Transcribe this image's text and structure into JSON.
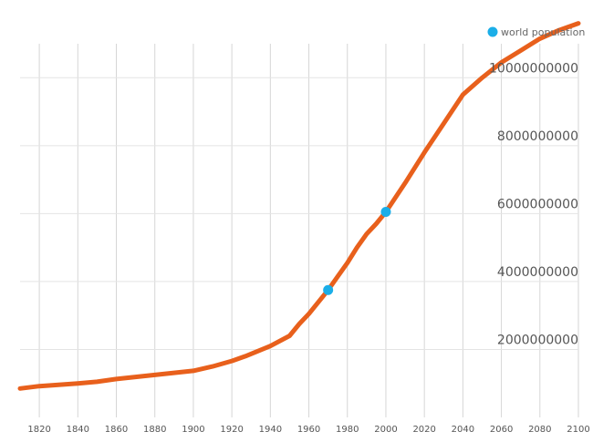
{
  "chart_data": {
    "type": "line",
    "title": "",
    "xlabel": "",
    "ylabel": "",
    "xlim": [
      1810,
      2100
    ],
    "ylim": [
      0,
      11000000000
    ],
    "grid": true,
    "legend_position": "top-right",
    "x_ticks": [
      1820,
      1840,
      1860,
      1880,
      1900,
      1920,
      1940,
      1960,
      1980,
      2000,
      2020,
      2040,
      2060,
      2080,
      2100
    ],
    "x_tick_labels": [
      "1820",
      "1840",
      "1860",
      "1880",
      "1900",
      "1920",
      "1940",
      "1960",
      "1980",
      "2000",
      "2020",
      "2040",
      "2060",
      "2080",
      "2100"
    ],
    "y_ticks": [
      2000000000,
      4000000000,
      6000000000,
      8000000000,
      10000000000
    ],
    "y_tick_labels": [
      "2000000000",
      "4000000000",
      "6000000000",
      "8000000000",
      "10000000000"
    ],
    "series": [
      {
        "name": "world population",
        "color": "#e8601c",
        "x": [
          1810,
          1820,
          1840,
          1850,
          1860,
          1880,
          1900,
          1910,
          1920,
          1927,
          1940,
          1950,
          1955,
          1960,
          1965,
          1970,
          1975,
          1980,
          1985,
          1990,
          1995,
          2000,
          2010,
          2020,
          2030,
          2040,
          2050,
          2060,
          2070,
          2080,
          2090,
          2100
        ],
        "y": [
          850000000,
          920000000,
          1000000000,
          1050000000,
          1130000000,
          1250000000,
          1370000000,
          1500000000,
          1660000000,
          1800000000,
          2100000000,
          2400000000,
          2750000000,
          3050000000,
          3400000000,
          3750000000,
          4150000000,
          4550000000,
          5000000000,
          5400000000,
          5700000000,
          6050000000,
          6900000000,
          7800000000,
          8650000000,
          9500000000,
          10000000000,
          10450000000,
          10800000000,
          11150000000,
          11400000000,
          11600000000
        ]
      }
    ],
    "highlight_color": "#1baee8",
    "highlight_points": [
      {
        "x": 1970,
        "y": 3750000000
      },
      {
        "x": 2000,
        "y": 6050000000
      }
    ]
  }
}
